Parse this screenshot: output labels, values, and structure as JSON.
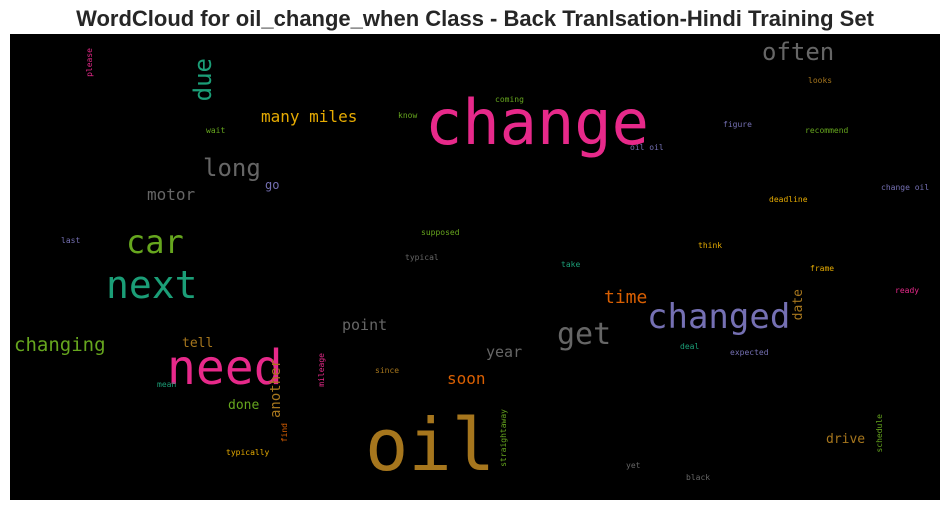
{
  "title": "WordCloud for oil_change_when Class - Back Tranlsation-Hindi Training Set",
  "chart_data": {
    "type": "wordcloud",
    "background": "#000000",
    "words": [
      {
        "text": "change",
        "color": "#e7298a"
      },
      {
        "text": "oil",
        "color": "#a6761d"
      },
      {
        "text": "need",
        "color": "#e7298a"
      },
      {
        "text": "next",
        "color": "#1b9e77"
      },
      {
        "text": "changed",
        "color": "#7570b3"
      },
      {
        "text": "car",
        "color": "#66a61e"
      },
      {
        "text": "get",
        "color": "#666666"
      },
      {
        "text": "often",
        "color": "#666666"
      },
      {
        "text": "long",
        "color": "#666666"
      },
      {
        "text": "due",
        "color": "#1b9e77",
        "vertical": true
      },
      {
        "text": "changing",
        "color": "#66a61e"
      },
      {
        "text": "many miles",
        "color": "#e6ab02"
      },
      {
        "text": "time",
        "color": "#d95f02"
      },
      {
        "text": "motor",
        "color": "#666666"
      },
      {
        "text": "point",
        "color": "#666666"
      },
      {
        "text": "soon",
        "color": "#d95f02"
      },
      {
        "text": "year",
        "color": "#666666"
      },
      {
        "text": "tell",
        "color": "#a6761d"
      },
      {
        "text": "another",
        "color": "#a6761d",
        "vertical": true
      },
      {
        "text": "done",
        "color": "#66a61e"
      },
      {
        "text": "drive",
        "color": "#a6761d"
      },
      {
        "text": "date",
        "color": "#a6761d",
        "vertical": true
      },
      {
        "text": "go",
        "color": "#7570b3"
      },
      {
        "text": "please",
        "color": "#e7298a",
        "vertical": true
      },
      {
        "text": "coming",
        "color": "#66a61e"
      },
      {
        "text": "know",
        "color": "#66a61e"
      },
      {
        "text": "wait",
        "color": "#66a61e"
      },
      {
        "text": "looks",
        "color": "#a6761d"
      },
      {
        "text": "figure",
        "color": "#7570b3"
      },
      {
        "text": "recommend",
        "color": "#66a61e"
      },
      {
        "text": "oil oil",
        "color": "#7570b3"
      },
      {
        "text": "change oil",
        "color": "#7570b3"
      },
      {
        "text": "deadline",
        "color": "#e6ab02"
      },
      {
        "text": "supposed",
        "color": "#66a61e"
      },
      {
        "text": "last",
        "color": "#7570b3"
      },
      {
        "text": "think",
        "color": "#e6ab02"
      },
      {
        "text": "typical",
        "color": "#666666"
      },
      {
        "text": "take",
        "color": "#1b9e77"
      },
      {
        "text": "frame",
        "color": "#e6ab02"
      },
      {
        "text": "ready",
        "color": "#e7298a"
      },
      {
        "text": "deal",
        "color": "#1b9e77"
      },
      {
        "text": "expected",
        "color": "#7570b3"
      },
      {
        "text": "mileage",
        "color": "#e7298a",
        "vertical": true
      },
      {
        "text": "since",
        "color": "#a6761d"
      },
      {
        "text": "mean",
        "color": "#1b9e77"
      },
      {
        "text": "find",
        "color": "#d95f02",
        "vertical": true
      },
      {
        "text": "typically",
        "color": "#e6ab02"
      },
      {
        "text": "straightaway",
        "color": "#66a61e",
        "vertical": true
      },
      {
        "text": "schedule",
        "color": "#66a61e",
        "vertical": true
      },
      {
        "text": "yet",
        "color": "#666666"
      },
      {
        "text": "black",
        "color": "#666666"
      }
    ]
  }
}
